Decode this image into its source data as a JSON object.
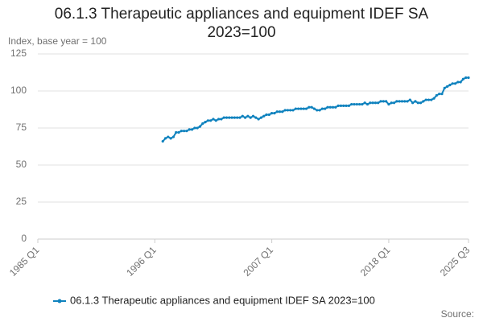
{
  "chart_data": {
    "type": "line",
    "title": "06.1.3 Therapeutic appliances and equipment IDEF SA 2023=100",
    "y_label": "Index, base year = 100",
    "source": "Source:",
    "categories": [
      "1985 Q1",
      null,
      null,
      null,
      null,
      null,
      null,
      null,
      null,
      null,
      null,
      null,
      null,
      null,
      null,
      null,
      null,
      null,
      null,
      null,
      null,
      null,
      null,
      null,
      null,
      null,
      null,
      null,
      null,
      null,
      null,
      null,
      null,
      null,
      null,
      null,
      null,
      null,
      null,
      null,
      null,
      null,
      null,
      null,
      "1996 Q1",
      null,
      null,
      null,
      null,
      null,
      null,
      null,
      null,
      null,
      null,
      null,
      null,
      null,
      null,
      null,
      null,
      null,
      null,
      null,
      null,
      null,
      null,
      null,
      null,
      null,
      null,
      null,
      null,
      null,
      null,
      null,
      null,
      null,
      null,
      null,
      null,
      null,
      null,
      null,
      null,
      null,
      null,
      null,
      "2007 Q1",
      null,
      null,
      null,
      null,
      null,
      null,
      null,
      null,
      null,
      null,
      null,
      null,
      null,
      null,
      null,
      null,
      null,
      null,
      null,
      null,
      null,
      null,
      null,
      null,
      null,
      null,
      null,
      null,
      null,
      null,
      null,
      null,
      null,
      null,
      null,
      null,
      null,
      null,
      null,
      null,
      null,
      null,
      null,
      "2018 Q1",
      null,
      null,
      null,
      null,
      null,
      null,
      null,
      null,
      null,
      null,
      null,
      null,
      null,
      null,
      null,
      null,
      null,
      null,
      null,
      null,
      null,
      null,
      null,
      null,
      null,
      null,
      null,
      null,
      null,
      "2025 Q3"
    ],
    "series": [
      {
        "name": "06.1.3 Therapeutic appliances and equipment IDEF SA 2023=100",
        "color": "#0f82be",
        "values": [
          null,
          null,
          null,
          null,
          null,
          null,
          null,
          null,
          null,
          null,
          null,
          null,
          null,
          null,
          null,
          null,
          null,
          null,
          null,
          null,
          null,
          null,
          null,
          null,
          null,
          null,
          null,
          null,
          null,
          null,
          null,
          null,
          null,
          null,
          null,
          null,
          null,
          null,
          null,
          null,
          null,
          null,
          null,
          null,
          null,
          null,
          null,
          66,
          68,
          69,
          68,
          69,
          72,
          72,
          73,
          73,
          73,
          74,
          74,
          75,
          75,
          76,
          78,
          79,
          80,
          80,
          81,
          80,
          81,
          81,
          82,
          82,
          82,
          82,
          82,
          82,
          82,
          83,
          82,
          83,
          82,
          83,
          82,
          81,
          82,
          83,
          84,
          84,
          85,
          85,
          86,
          86,
          86,
          87,
          87,
          87,
          87,
          88,
          88,
          88,
          88,
          88,
          89,
          89,
          88,
          87,
          87,
          88,
          88,
          89,
          89,
          89,
          89,
          90,
          90,
          90,
          90,
          90,
          91,
          91,
          91,
          91,
          91,
          92,
          91,
          92,
          92,
          92,
          92,
          93,
          93,
          93,
          91,
          92,
          92,
          93,
          93,
          93,
          93,
          93,
          94,
          92,
          93,
          92,
          92,
          93,
          94,
          94,
          94,
          95,
          97,
          98,
          98,
          102,
          103,
          104,
          105,
          105,
          106,
          106,
          108,
          109,
          109
        ]
      }
    ],
    "ylim": [
      0,
      125
    ],
    "yticks": [
      0,
      25,
      50,
      75,
      100,
      125
    ],
    "grid": true
  }
}
